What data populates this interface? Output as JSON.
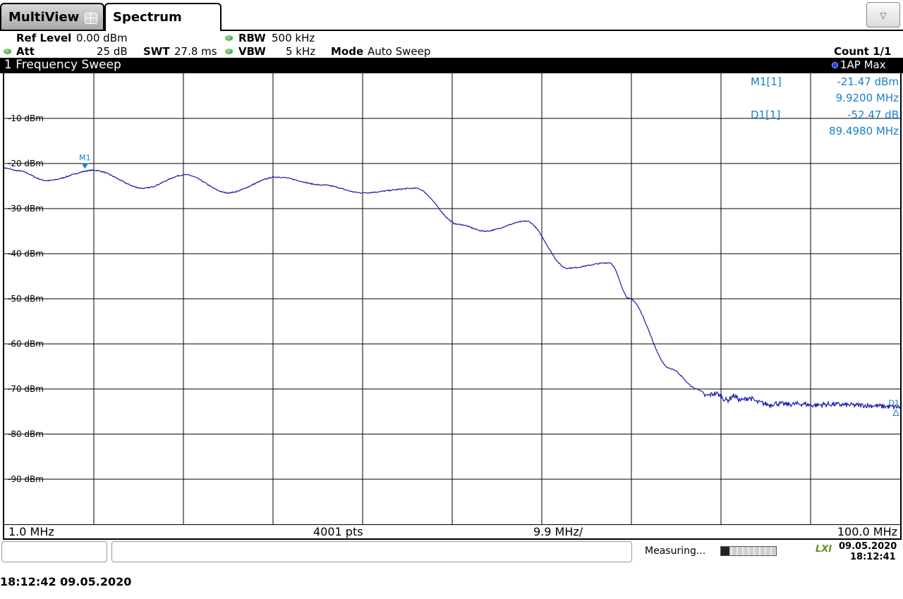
{
  "tabs": {
    "multiview_label": "MultiView",
    "spectrum_label": "Spectrum"
  },
  "dropdown_glyph": "▽",
  "settings": {
    "ref_level_label": "Ref Level",
    "ref_level_value": "0.00 dBm",
    "att_label": "Att",
    "att_value": "25 dB",
    "swt_label": "SWT",
    "swt_value": "27.8 ms",
    "rbw_label": "RBW",
    "rbw_value": "500 kHz",
    "vbw_label": "VBW",
    "vbw_value": "5 kHz",
    "mode_label": "Mode",
    "mode_value": "Auto Sweep",
    "count_text": "Count 1/1"
  },
  "window": {
    "title": "1 Frequency Sweep",
    "trace_label": "1AP Max"
  },
  "markers": {
    "m1_label": "M1[1]",
    "m1_level": "-21.47 dBm",
    "m1_freq": "9.9200 MHz",
    "d1_label": "D1[1]",
    "d1_level": "-52.47 dB",
    "d1_freq": "89.4980 MHz",
    "m1_tag": "M1",
    "d1_tag": "D1"
  },
  "chart_data": {
    "type": "line",
    "xlabel": "",
    "ylabel": "",
    "x_axis": {
      "start": "1.0 MHz",
      "center": "9.9 MHz/",
      "stop": "100.0 MHz",
      "points": "4001 pts",
      "start_mhz": 1.0,
      "stop_mhz": 100.0
    },
    "ylim": [
      -100,
      0
    ],
    "y_ticks": [
      "-10 dBm",
      "-20 dBm",
      "-30 dBm",
      "-40 dBm",
      "-50 dBm",
      "-60 dBm",
      "-70 dBm",
      "-80 dBm",
      "-90 dBm"
    ],
    "grid": true,
    "series": [
      {
        "color": "#1a1aaa",
        "x": [
          1.0,
          2.5,
          5.7,
          10.9,
          16.4,
          21.0,
          25.7,
          31.1,
          36.3,
          40.5,
          46.5,
          51.2,
          54.1,
          58.7,
          63.2,
          67.9,
          70.1,
          74.6,
          77.6,
          78.5,
          79.6,
          80.9,
          81.6,
          82.4,
          83.3,
          84.4,
          85.6,
          86.2,
          87.6,
          89.1,
          90.4,
          91.9,
          95.4,
          100.0
        ],
        "values": [
          -21.0,
          -21.6,
          -23.8,
          -21.5,
          -25.5,
          -22.5,
          -26.5,
          -23.0,
          -24.8,
          -26.5,
          -25.5,
          -33.5,
          -35.0,
          -32.8,
          -43.2,
          -42.0,
          -50.0,
          -65.5,
          -70.0,
          -71.5,
          -71.0,
          -72.5,
          -71.5,
          -72.5,
          -72.0,
          -73.0,
          -73.5,
          -73.2,
          -73.4,
          -73.3,
          -73.6,
          -73.4,
          -73.6,
          -74.0
        ]
      }
    ],
    "marker_m1": {
      "x": 9.92,
      "y": -21.47
    }
  },
  "status": {
    "measuring_text": "Measuring...",
    "progress_fraction": 0.15,
    "lxi_text": "LXI",
    "date": "09.05.2020",
    "time": "18:12:41"
  },
  "footer": {
    "timestamp": "18:12:42 09.05.2020"
  }
}
